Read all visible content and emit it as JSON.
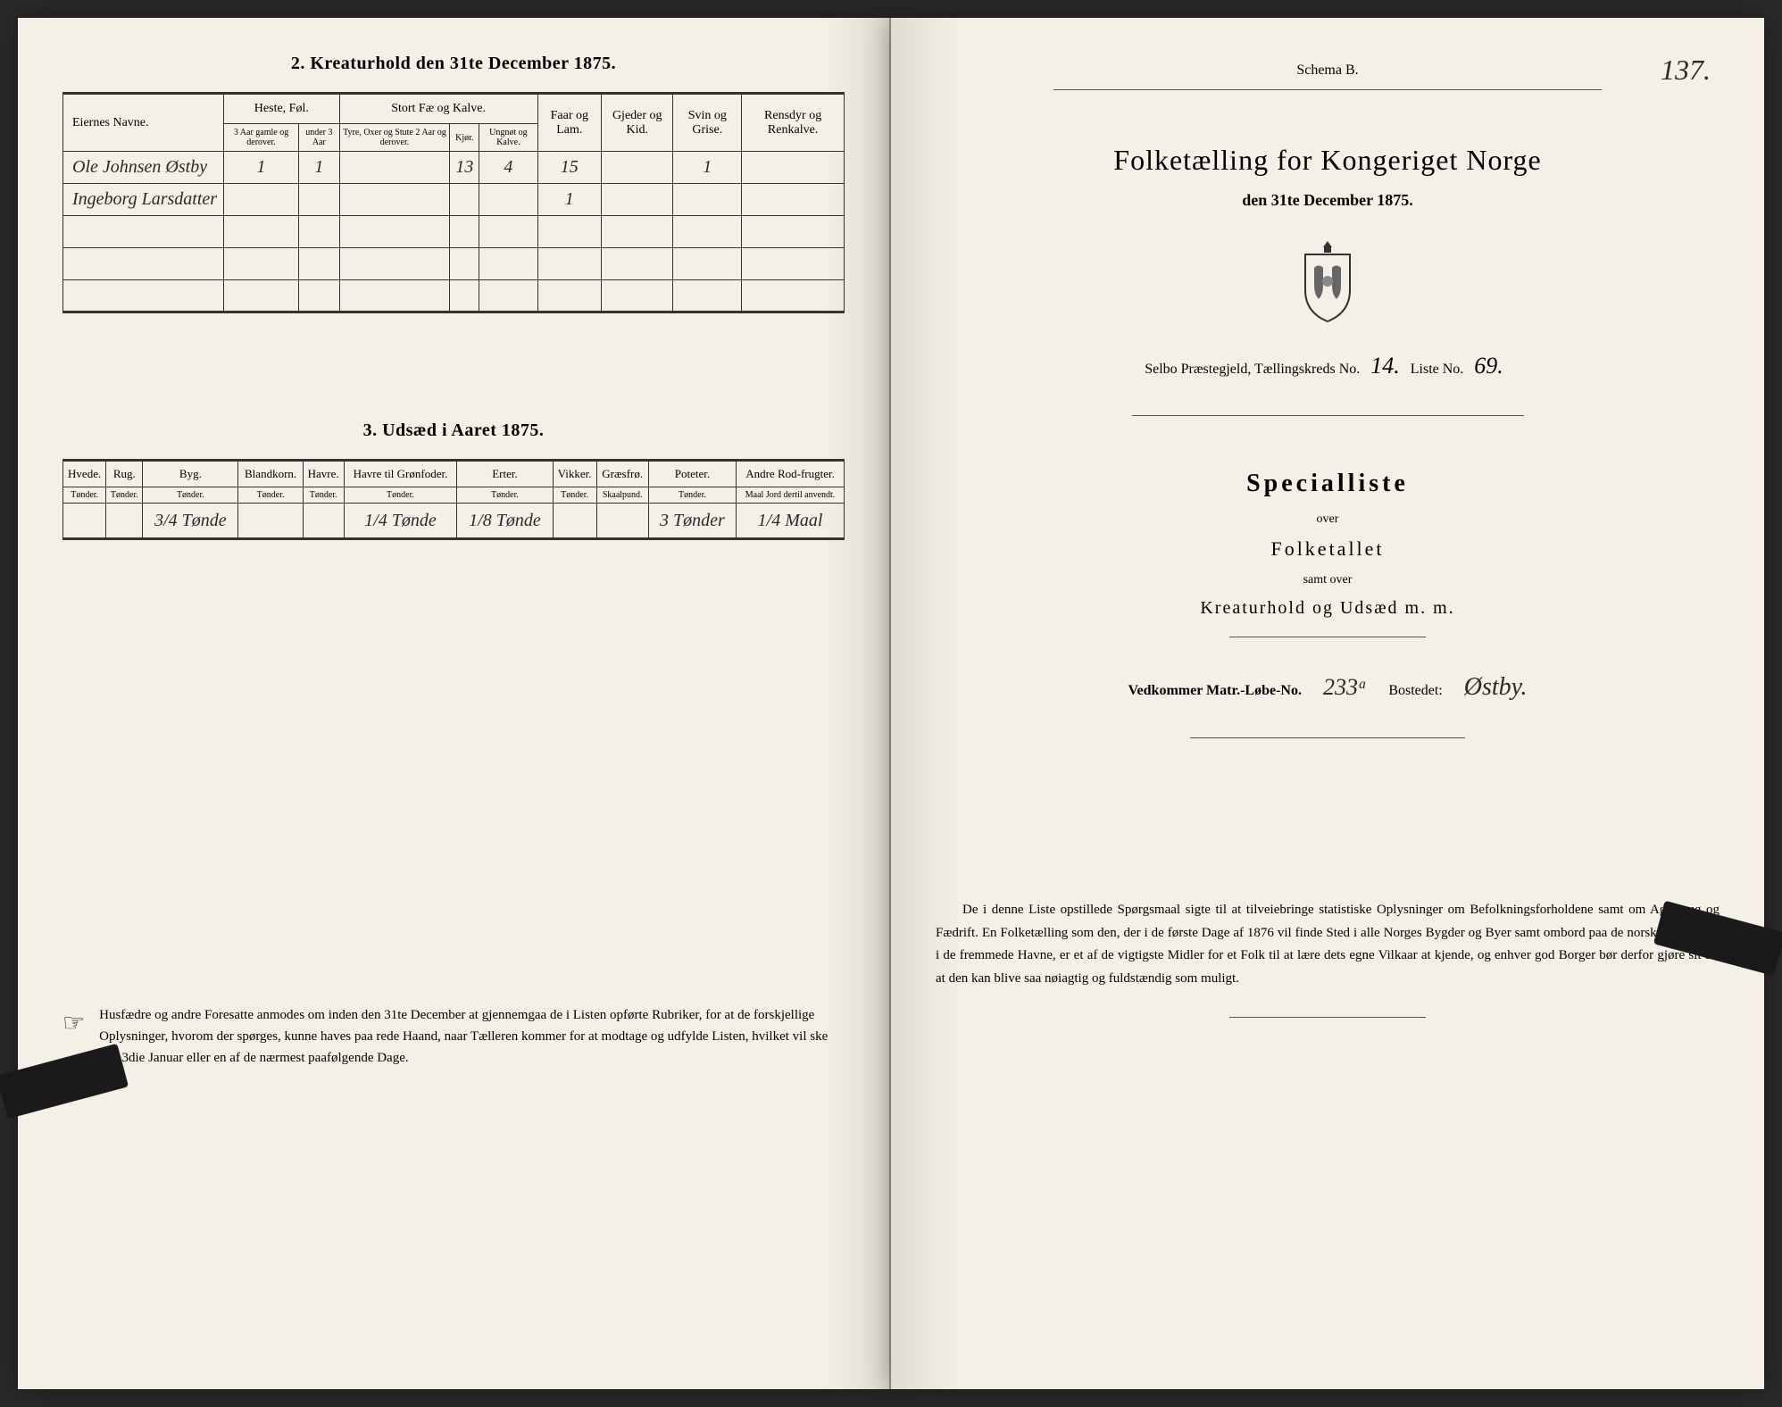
{
  "colors": {
    "paper": "#f4f0e8",
    "ink": "#2a2a2a",
    "border": "#333333",
    "background": "#2a2a2a"
  },
  "left": {
    "table2": {
      "title": "2.  Kreaturhold den 31te December 1875.",
      "headers": {
        "owner": "Eiernes Navne.",
        "group_heste": "Heste, Føl.",
        "group_stort": "Stort Fæ og Kalve.",
        "faar": "Faar og Lam.",
        "gjeder": "Gjeder og Kid.",
        "svin": "Svin og Grise.",
        "rensdyr": "Rensdyr og Renkalve.",
        "h1": "3 Aar gamle og derover.",
        "h2": "under 3 Aar",
        "s1": "Tyre, Oxer og Stute 2 Aar og derover.",
        "s2": "Kjør.",
        "s3": "Ungnøt og Kalve."
      },
      "rows": [
        {
          "owner": "Ole Johnsen Østby",
          "c1": "1",
          "c2": "1",
          "c3": "",
          "c4": "13",
          "c5": "4",
          "c6": "15",
          "c7": "",
          "c8": "1",
          "c9": ""
        },
        {
          "owner": "Ingeborg Larsdatter",
          "c1": "",
          "c2": "",
          "c3": "",
          "c4": "",
          "c5": "",
          "c6": "1",
          "c7": "",
          "c8": "",
          "c9": ""
        }
      ]
    },
    "table3": {
      "title": "3.  Udsæd i Aaret 1875.",
      "headers": [
        "Hvede.",
        "Rug.",
        "Byg.",
        "Blandkorn.",
        "Havre.",
        "Havre til Grønfoder.",
        "Erter.",
        "Vikker.",
        "Græsfrø.",
        "Poteter.",
        "Andre Rod-frugter."
      ],
      "subheaders": [
        "Tønder.",
        "Tønder.",
        "Tønder.",
        "Tønder.",
        "Tønder.",
        "Tønder.",
        "Tønder.",
        "Tønder.",
        "Skaalpund.",
        "Tønder.",
        "Maal Jord dertil anvendt."
      ],
      "row": [
        "",
        "",
        "3/4 Tønde",
        "",
        "",
        "1/4 Tønde",
        "1/8 Tønde",
        "",
        "",
        "3 Tønder",
        "1/4 Maal"
      ]
    },
    "footnote": "Husfædre og andre Foresatte anmodes om inden den 31te December at gjennemgaa de i Listen opførte Rubriker, for at de forskjellige Oplysninger, hvorom der spørges, kunne haves paa rede Haand, naar Tælleren kommer for at modtage og udfylde Listen, hvilket vil ske den 3die Januar eller en af de nærmest paafølgende Dage."
  },
  "right": {
    "page_number": "137.",
    "schema": "Schema B.",
    "main_title": "Folketælling for Kongeriget Norge",
    "sub_date": "den 31te December 1875.",
    "district_prefix": "Selbo Præstegjeld, Tællingskreds No.",
    "district_no": "14.",
    "liste_label": "Liste No.",
    "liste_no": "69.",
    "special": "Specialliste",
    "over": "over",
    "folketallet": "Folketallet",
    "samt": "samt over",
    "kreatur": "Kreaturhold og Udsæd m. m.",
    "vedkommer_label": "Vedkommer Matr.-Løbe-No.",
    "matr_no": "233ᵃ",
    "bostedet_label": "Bostedet:",
    "bostedet": "Østby.",
    "bottom": "De i denne Liste opstillede Spørgsmaal sigte til at tilveiebringe statistiske Oplysninger om Befolkningsforholdene samt om Agerbrug og Fædrift.  En Folketælling som den, der i de første Dage af 1876 vil finde Sted i alle Norges Bygder og Byer samt ombord paa de norske Skibe ude i de fremmede Havne, er et af de vigtigste Midler for et Folk til at lære dets egne Vilkaar at kjende, og enhver god Borger bør derfor gjøre sit til, at den kan blive saa nøiagtig og fuldstændig som muligt."
  }
}
